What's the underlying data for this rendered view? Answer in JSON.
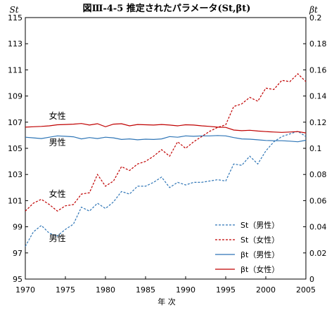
{
  "chart_data": {
    "type": "line",
    "title": "図Ⅲ-4-5 推定されたパラメータ(St,βt)",
    "xlabel": "年 次",
    "ylabel_left": "St",
    "ylabel_right": "βt",
    "x": [
      1970,
      1971,
      1972,
      1973,
      1974,
      1975,
      1976,
      1977,
      1978,
      1979,
      1980,
      1981,
      1982,
      1983,
      1984,
      1985,
      1986,
      1987,
      1988,
      1989,
      1990,
      1991,
      1992,
      1993,
      1994,
      1995,
      1996,
      1997,
      1998,
      1999,
      2000,
      2001,
      2002,
      2003,
      2004,
      2005
    ],
    "xlim": [
      1970,
      2005
    ],
    "x_ticks": [
      1970,
      1975,
      1980,
      1985,
      1990,
      1995,
      2000,
      2005
    ],
    "x_tick_labels": [
      "1970",
      "1975",
      "1980",
      "1985",
      "1990",
      "1995",
      "2000",
      "2005"
    ],
    "ylim_left": [
      95,
      115
    ],
    "y_ticks_left": [
      95,
      97,
      99,
      101,
      103,
      105,
      107,
      109,
      111,
      113,
      115
    ],
    "y_tick_labels_left": [
      "95",
      "97",
      "99",
      "101",
      "103",
      "105",
      "107",
      "109",
      "111",
      "113",
      "115"
    ],
    "ylim_right": [
      0,
      0.2
    ],
    "y_ticks_right": [
      0,
      0.02,
      0.04,
      0.06,
      0.08,
      0.1,
      0.12,
      0.14,
      0.16,
      0.18,
      0.2
    ],
    "y_tick_labels_right": [
      "0",
      "0.02",
      "0.04",
      "0.06",
      "0.08",
      "0.1",
      "0.12",
      "0.14",
      "0.16",
      "0.18",
      "0.2"
    ],
    "grid": false,
    "legend_position": "bottom-right",
    "series": [
      {
        "name": "St（男性）",
        "axis": "left",
        "color": "#2e75b6",
        "dash": "dashed",
        "values": [
          97.5,
          98.6,
          99.1,
          98.5,
          98.3,
          98.8,
          99.2,
          100.5,
          100.2,
          100.8,
          100.4,
          100.9,
          101.7,
          101.5,
          102.1,
          102.1,
          102.4,
          102.8,
          102.0,
          102.4,
          102.2,
          102.4,
          102.4,
          102.5,
          102.6,
          102.5,
          103.8,
          103.7,
          104.4,
          103.8,
          104.8,
          105.5,
          105.9,
          106.1,
          106.3,
          105.9
        ]
      },
      {
        "name": "St（女性）",
        "axis": "left",
        "color": "#c00000",
        "dash": "dashed",
        "values": [
          100.2,
          100.8,
          101.1,
          100.7,
          100.2,
          100.6,
          100.7,
          101.5,
          101.6,
          103.0,
          102.1,
          102.5,
          103.6,
          103.3,
          103.8,
          104.0,
          104.4,
          104.9,
          104.4,
          105.5,
          105.0,
          105.5,
          105.9,
          106.3,
          106.6,
          106.8,
          108.2,
          108.4,
          108.9,
          108.6,
          109.6,
          109.5,
          110.2,
          110.1,
          110.7,
          110.1
        ]
      },
      {
        "name": "βt（男性）",
        "axis": "right",
        "color": "#2e75b6",
        "dash": "solid",
        "values": [
          0.1085,
          0.108,
          0.1075,
          0.1085,
          0.1095,
          0.1092,
          0.1088,
          0.1072,
          0.1082,
          0.1075,
          0.1085,
          0.108,
          0.1068,
          0.1072,
          0.1065,
          0.107,
          0.1068,
          0.1072,
          0.109,
          0.1085,
          0.1095,
          0.1092,
          0.1095,
          0.1095,
          0.1098,
          0.1095,
          0.1082,
          0.1072,
          0.107,
          0.1065,
          0.106,
          0.1058,
          0.1058,
          0.1055,
          0.105,
          0.1062
        ]
      },
      {
        "name": "βt（女性）",
        "axis": "right",
        "color": "#c00000",
        "dash": "solid",
        "values": [
          0.1162,
          0.1165,
          0.1168,
          0.1172,
          0.118,
          0.1182,
          0.1185,
          0.119,
          0.1178,
          0.1188,
          0.1165,
          0.1185,
          0.1188,
          0.1172,
          0.1182,
          0.118,
          0.1178,
          0.1182,
          0.1178,
          0.1172,
          0.118,
          0.1178,
          0.1172,
          0.1168,
          0.1162,
          0.116,
          0.114,
          0.1135,
          0.1138,
          0.1132,
          0.1128,
          0.1125,
          0.1122,
          0.1125,
          0.1128,
          0.1118
        ]
      }
    ],
    "annotations": [
      {
        "text": "女性",
        "series": 3,
        "x": 1974,
        "y": 0.1225
      },
      {
        "text": "男性",
        "series": 2,
        "x": 1974,
        "y": 0.1025
      },
      {
        "text": "女性",
        "series": 1,
        "x": 1974,
        "y": 101.3
      },
      {
        "text": "男性",
        "series": 0,
        "x": 1974,
        "y": 97.9
      }
    ]
  }
}
